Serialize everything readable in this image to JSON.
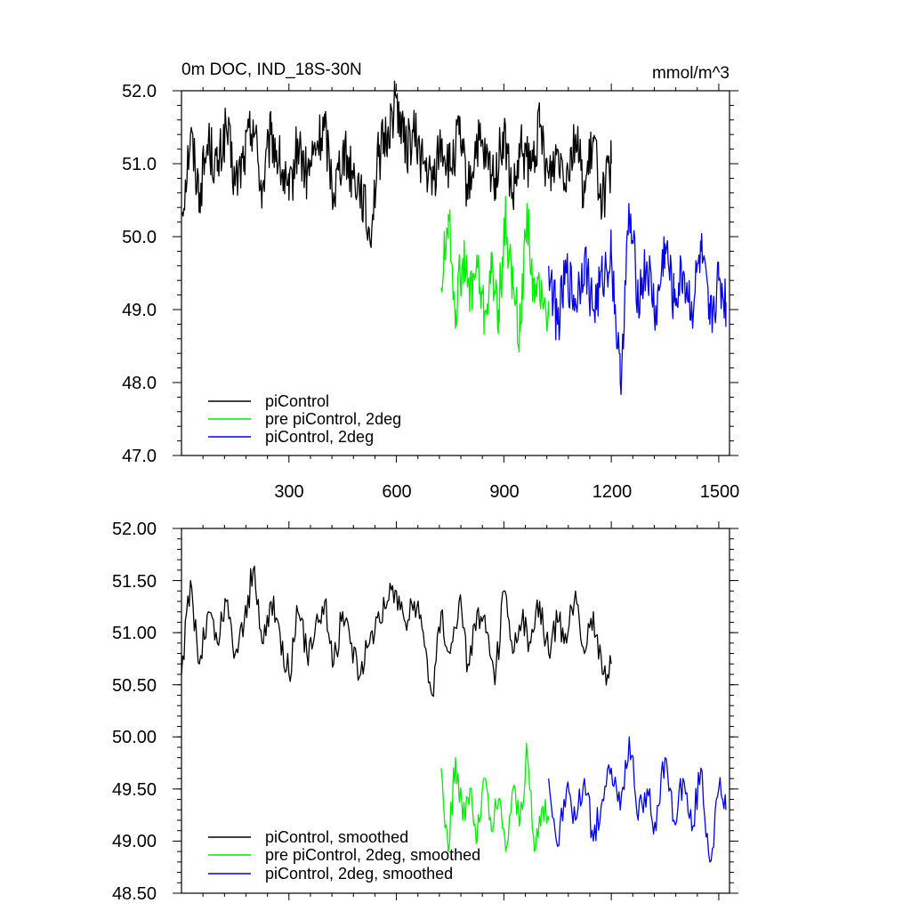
{
  "chart_data": [
    {
      "type": "line",
      "title": "0m DOC, IND_18S-30N",
      "units": "mmol/m^3",
      "xlim": [
        0,
        1530
      ],
      "ylim": [
        47.0,
        52.0
      ],
      "x_ticks": [
        300,
        600,
        900,
        1200,
        1500
      ],
      "x_tick_labels": [
        "300",
        "600",
        "900",
        "1200",
        "1500"
      ],
      "y_ticks": [
        47.0,
        48.0,
        49.0,
        50.0,
        51.0,
        52.0
      ],
      "y_tick_labels": [
        "47.0",
        "48.0",
        "49.0",
        "50.0",
        "51.0",
        "52.0"
      ],
      "legend_position": "bottom-left",
      "series": [
        {
          "name": "piControl",
          "color": "#000000",
          "x": [
            0,
            25,
            50,
            75,
            100,
            125,
            150,
            175,
            200,
            225,
            250,
            275,
            300,
            325,
            350,
            375,
            400,
            425,
            450,
            475,
            500,
            525,
            550,
            575,
            600,
            625,
            650,
            675,
            700,
            725,
            750,
            775,
            800,
            825,
            850,
            875,
            900,
            925,
            950,
            975,
            1000,
            1025,
            1050,
            1075,
            1100,
            1125,
            1150,
            1175,
            1200
          ],
          "values": [
            50.3,
            51.4,
            50.6,
            51.3,
            50.9,
            51.5,
            50.7,
            51.1,
            51.6,
            50.6,
            51.4,
            51.0,
            50.5,
            51.3,
            50.8,
            51.2,
            51.5,
            50.6,
            51.2,
            50.9,
            50.7,
            50.0,
            51.1,
            51.4,
            51.9,
            51.2,
            51.4,
            51.0,
            50.7,
            51.3,
            50.9,
            51.4,
            50.6,
            51.3,
            51.0,
            50.8,
            51.4,
            50.5,
            51.2,
            50.9,
            51.5,
            50.8,
            51.2,
            50.9,
            51.4,
            50.6,
            51.3,
            50.5,
            51.0
          ]
        },
        {
          "name": "pre piControl, 2deg",
          "color": "#00ee00",
          "x": [
            725,
            745,
            765,
            785,
            805,
            825,
            845,
            865,
            885,
            905,
            925,
            945,
            965,
            985,
            1005,
            1025
          ],
          "values": [
            49.3,
            50.3,
            49.0,
            49.7,
            49.2,
            49.6,
            48.9,
            49.5,
            49.0,
            50.2,
            49.3,
            48.7,
            50.4,
            49.1,
            49.4,
            48.9
          ]
        },
        {
          "name": "piControl, 2deg",
          "color": "#0000ee",
          "x": [
            1025,
            1050,
            1075,
            1100,
            1125,
            1150,
            1175,
            1200,
            1225,
            1250,
            1275,
            1300,
            1325,
            1350,
            1375,
            1400,
            1425,
            1450,
            1475,
            1500,
            1520
          ],
          "values": [
            49.6,
            48.8,
            49.5,
            49.1,
            49.7,
            49.0,
            49.4,
            49.8,
            48.0,
            50.3,
            49.2,
            49.6,
            48.9,
            49.9,
            49.1,
            49.5,
            49.0,
            49.8,
            48.8,
            49.4,
            49.1
          ]
        }
      ]
    },
    {
      "type": "line",
      "xlim": [
        0,
        1530
      ],
      "ylim": [
        48.5,
        52.0
      ],
      "x_ticks": [
        300,
        600,
        900,
        1200,
        1500
      ],
      "y_ticks": [
        48.5,
        49.0,
        49.5,
        50.0,
        50.5,
        51.0,
        51.5,
        52.0
      ],
      "y_tick_labels": [
        "48.50",
        "49.00",
        "49.50",
        "50.00",
        "50.50",
        "51.00",
        "51.50",
        "52.00"
      ],
      "legend_position": "bottom-left",
      "series": [
        {
          "name": "piControl, smoothed",
          "color": "#000000",
          "x": [
            0,
            25,
            50,
            75,
            100,
            125,
            150,
            175,
            200,
            225,
            250,
            275,
            300,
            325,
            350,
            375,
            400,
            425,
            450,
            475,
            500,
            525,
            550,
            575,
            600,
            625,
            650,
            675,
            700,
            725,
            750,
            775,
            800,
            825,
            850,
            875,
            900,
            925,
            950,
            975,
            1000,
            1025,
            1050,
            1075,
            1100,
            1125,
            1150,
            1175,
            1200
          ],
          "values": [
            50.6,
            51.5,
            50.7,
            51.2,
            50.9,
            51.3,
            50.8,
            51.1,
            51.6,
            50.9,
            51.3,
            51.0,
            50.6,
            51.2,
            50.8,
            51.1,
            51.3,
            50.7,
            51.2,
            50.9,
            50.6,
            50.9,
            51.2,
            51.3,
            51.4,
            51.1,
            51.3,
            51.0,
            50.4,
            51.2,
            50.8,
            51.3,
            50.7,
            51.2,
            51.0,
            50.5,
            51.4,
            50.8,
            51.1,
            50.9,
            51.3,
            50.8,
            51.1,
            50.9,
            51.4,
            50.8,
            51.2,
            50.6,
            50.7
          ]
        },
        {
          "name": "pre piControl, 2deg, smoothed",
          "color": "#00ee00",
          "x": [
            725,
            745,
            765,
            785,
            805,
            825,
            845,
            865,
            885,
            905,
            925,
            945,
            965,
            985,
            1005,
            1025
          ],
          "values": [
            49.7,
            48.9,
            49.8,
            49.2,
            49.5,
            49.0,
            49.6,
            49.1,
            49.4,
            48.9,
            49.5,
            49.2,
            49.85,
            48.9,
            49.3,
            49.2
          ]
        },
        {
          "name": "piControl, 2deg, smoothed",
          "color": "#0000ee",
          "x": [
            1025,
            1050,
            1075,
            1100,
            1125,
            1150,
            1175,
            1200,
            1225,
            1250,
            1275,
            1300,
            1325,
            1350,
            1375,
            1400,
            1425,
            1450,
            1475,
            1500,
            1520
          ],
          "values": [
            49.6,
            48.95,
            49.5,
            49.2,
            49.6,
            49.0,
            49.4,
            49.7,
            49.3,
            50.0,
            49.2,
            49.5,
            49.1,
            49.8,
            49.2,
            49.6,
            49.1,
            49.7,
            48.8,
            49.5,
            49.3
          ]
        }
      ]
    }
  ]
}
